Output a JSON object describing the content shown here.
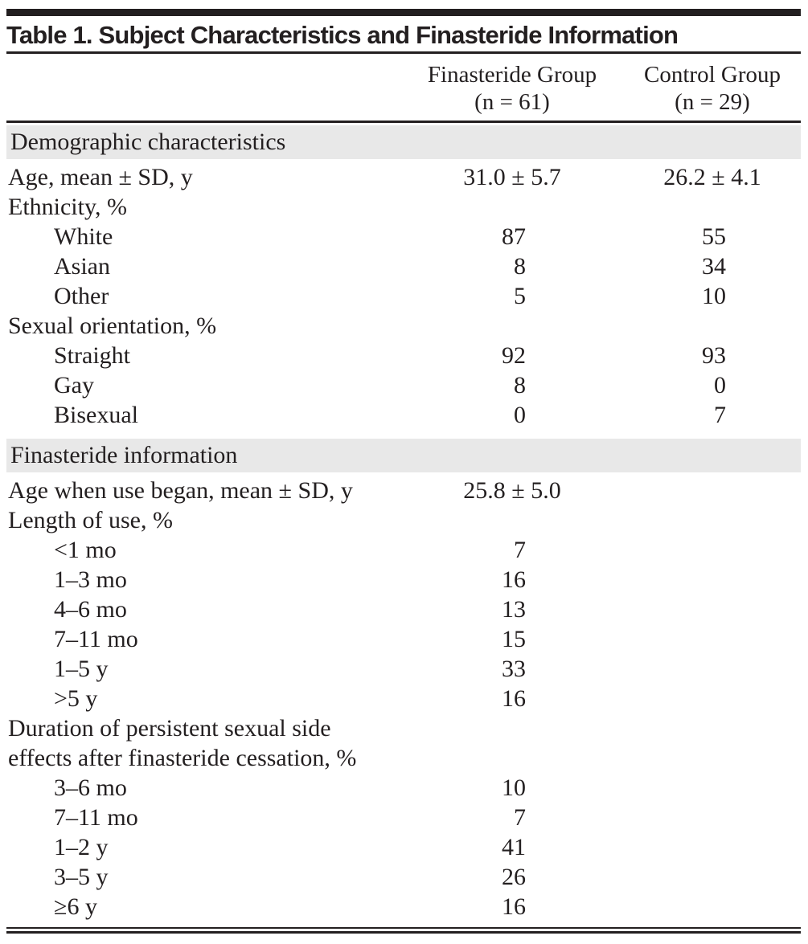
{
  "colors": {
    "text": "#231f20",
    "section_band": "#e8e8e8",
    "rule": "#231f20"
  },
  "table": {
    "title": "Table 1. Subject Characteristics and Finasteride Information",
    "columns": [
      {
        "name": "Finasteride Group",
        "n": "(n = 61)"
      },
      {
        "name": "Control Group",
        "n": "(n = 29)"
      }
    ],
    "sections": [
      {
        "header": "Demographic characteristics",
        "rows": [
          {
            "label": "Age, mean ± SD, y",
            "indent": 0,
            "values": [
              "31.0 ± 5.7",
              "26.2 ± 4.1"
            ]
          },
          {
            "label": "Ethnicity, %",
            "indent": 0,
            "values": [
              "",
              ""
            ]
          },
          {
            "label": "White",
            "indent": 1,
            "values": [
              "87",
              "55"
            ]
          },
          {
            "label": "Asian",
            "indent": 1,
            "values": [
              "8",
              "34"
            ]
          },
          {
            "label": "Other",
            "indent": 1,
            "values": [
              "5",
              "10"
            ]
          },
          {
            "label": "Sexual orientation, %",
            "indent": 0,
            "values": [
              "",
              ""
            ]
          },
          {
            "label": "Straight",
            "indent": 1,
            "values": [
              "92",
              "93"
            ]
          },
          {
            "label": "Gay",
            "indent": 1,
            "values": [
              "8",
              "0"
            ]
          },
          {
            "label": "Bisexual",
            "indent": 1,
            "values": [
              "0",
              "7"
            ]
          }
        ]
      },
      {
        "header": "Finasteride information",
        "rows": [
          {
            "label": "Age when use began, mean ± SD, y",
            "indent": 0,
            "values": [
              "25.8 ± 5.0",
              ""
            ]
          },
          {
            "label": "Length of use, %",
            "indent": 0,
            "values": [
              "",
              ""
            ]
          },
          {
            "label": "<1 mo",
            "indent": 1,
            "values": [
              "7",
              ""
            ]
          },
          {
            "label": "1–3 mo",
            "indent": 1,
            "values": [
              "16",
              ""
            ]
          },
          {
            "label": "4–6 mo",
            "indent": 1,
            "values": [
              "13",
              ""
            ]
          },
          {
            "label": "7–11 mo",
            "indent": 1,
            "values": [
              "15",
              ""
            ]
          },
          {
            "label": "1–5 y",
            "indent": 1,
            "values": [
              "33",
              ""
            ]
          },
          {
            "label": ">5 y",
            "indent": 1,
            "values": [
              "16",
              ""
            ]
          },
          {
            "label": "Duration of persistent sexual side effects after finasteride cessation, %",
            "indent": 0,
            "values": [
              "",
              ""
            ]
          },
          {
            "label": "3–6 mo",
            "indent": 1,
            "values": [
              "10",
              ""
            ]
          },
          {
            "label": "7–11 mo",
            "indent": 1,
            "values": [
              "7",
              ""
            ]
          },
          {
            "label": "1–2 y",
            "indent": 1,
            "values": [
              "41",
              ""
            ]
          },
          {
            "label": "3–5 y",
            "indent": 1,
            "values": [
              "26",
              ""
            ]
          },
          {
            "label": "≥6 y",
            "indent": 1,
            "values": [
              "16",
              ""
            ]
          }
        ]
      }
    ]
  }
}
